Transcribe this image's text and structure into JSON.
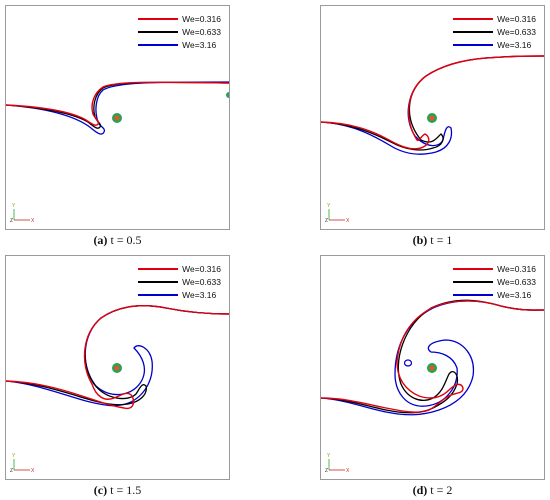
{
  "legend": [
    {
      "label": "We=0.316",
      "color": "#e0000f"
    },
    {
      "label": "We=0.633",
      "color": "#000000"
    },
    {
      "label": "We=3.16",
      "color": "#0000cc"
    }
  ],
  "panels": [
    {
      "letter": "(a)",
      "time": "t = 0.5"
    },
    {
      "letter": "(b)",
      "time": "t = 1"
    },
    {
      "letter": "(c)",
      "time": "t = 1.5"
    },
    {
      "letter": "(d)",
      "time": "t = 2"
    }
  ],
  "axes": {
    "x": "X",
    "y": "Y",
    "z": "Z"
  },
  "colors": {
    "marker_outer": "#2e9e57",
    "marker_inner": "#e05a1f",
    "frame": "#9a9a9a"
  }
}
